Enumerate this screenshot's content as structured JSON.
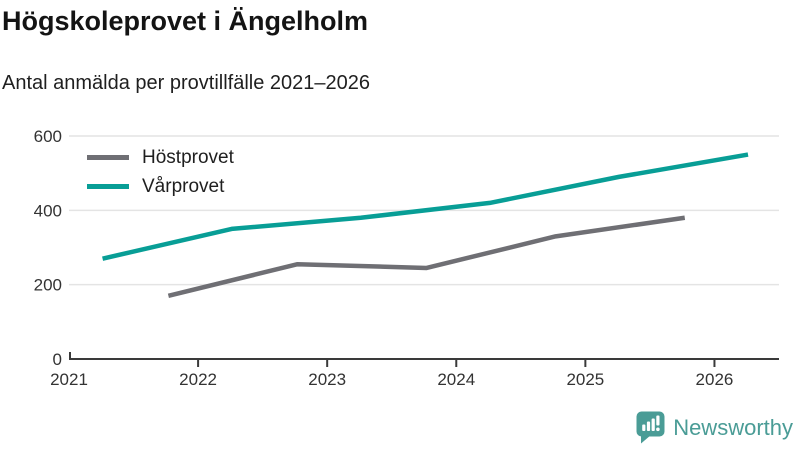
{
  "chart_data": {
    "type": "line",
    "title": "Högskoleprovet i Ängelholm",
    "subtitle": "Antal anmälda per provtillfälle 2021–2026",
    "xlabel": "",
    "ylabel": "",
    "xlim": [
      2021,
      2026.5
    ],
    "ylim": [
      0,
      600
    ],
    "xticks": [
      2021,
      2022,
      2023,
      2024,
      2025,
      2026
    ],
    "yticks": [
      0,
      200,
      400,
      600
    ],
    "grid": "horizontal-only",
    "legend_position": "top-left-inside",
    "series": [
      {
        "name": "Höstprovet",
        "color": "#6f6f74",
        "points": [
          {
            "x": 2021.77,
            "y": 170
          },
          {
            "x": 2022.77,
            "y": 255
          },
          {
            "x": 2023.77,
            "y": 245
          },
          {
            "x": 2024.77,
            "y": 330
          },
          {
            "x": 2025.77,
            "y": 380
          }
        ]
      },
      {
        "name": "Vårprovet",
        "color": "#089e96",
        "points": [
          {
            "x": 2021.26,
            "y": 270
          },
          {
            "x": 2022.26,
            "y": 350
          },
          {
            "x": 2023.26,
            "y": 380
          },
          {
            "x": 2024.26,
            "y": 420
          },
          {
            "x": 2025.26,
            "y": 490
          },
          {
            "x": 2026.26,
            "y": 550
          }
        ]
      }
    ]
  },
  "colors": {
    "grid": "#e4e4e4",
    "axis": "#3a3a3a",
    "tick_label": "#333333",
    "title": "#141414",
    "brand_teal": "#4a9c96"
  },
  "branding": {
    "name": "Newsworthy",
    "icon": "bar-chart-speech-bubble"
  }
}
